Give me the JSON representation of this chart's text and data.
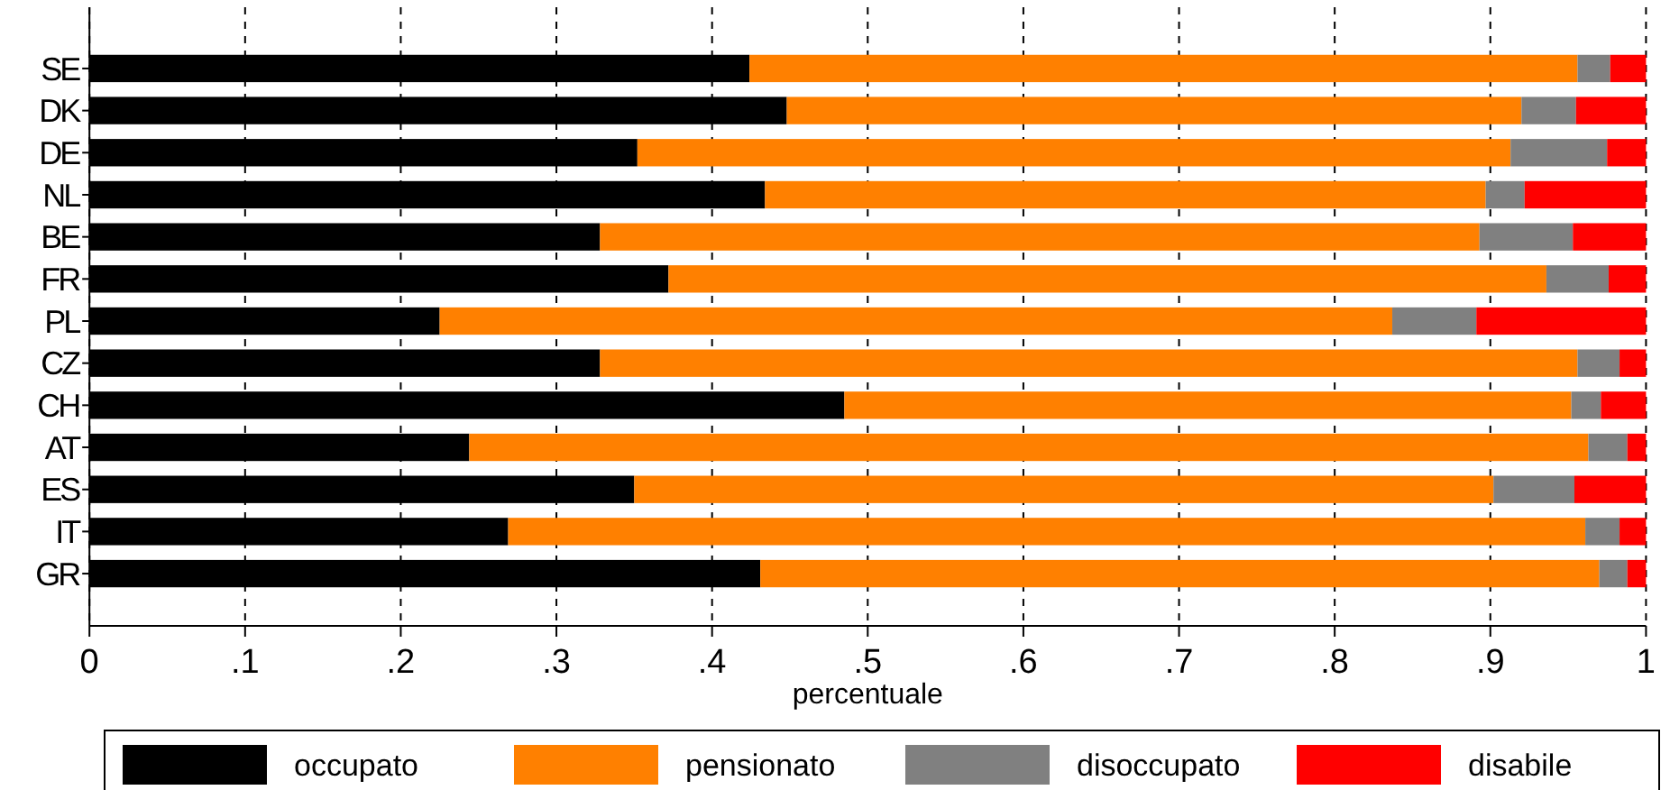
{
  "chart_data": {
    "type": "bar",
    "orientation": "horizontal",
    "stacked": true,
    "xlabel": "percentuale",
    "categories": [
      "SE",
      "DK",
      "DE",
      "NL",
      "BE",
      "FR",
      "PL",
      "CZ",
      "CH",
      "AT",
      "ES",
      "IT",
      "GR"
    ],
    "series": [
      {
        "name": "occupato",
        "color": "#000000",
        "values": [
          0.424,
          0.448,
          0.352,
          0.434,
          0.328,
          0.372,
          0.225,
          0.328,
          0.485,
          0.244,
          0.35,
          0.269,
          0.431
        ]
      },
      {
        "name": "pensionato",
        "color": "#ff8000",
        "values": [
          0.532,
          0.472,
          0.561,
          0.463,
          0.565,
          0.564,
          0.612,
          0.628,
          0.467,
          0.719,
          0.552,
          0.692,
          0.539
        ]
      },
      {
        "name": "disoccupato",
        "color": "#808080",
        "values": [
          0.021,
          0.035,
          0.062,
          0.025,
          0.06,
          0.04,
          0.054,
          0.027,
          0.019,
          0.025,
          0.052,
          0.022,
          0.018
        ]
      },
      {
        "name": "disabile",
        "color": "#ff0000",
        "values": [
          0.023,
          0.045,
          0.025,
          0.078,
          0.047,
          0.024,
          0.109,
          0.017,
          0.029,
          0.012,
          0.046,
          0.017,
          0.012
        ]
      }
    ],
    "xlim": [
      0,
      1
    ],
    "xticks": [
      0,
      {
        "value": 0.1,
        "label": ".1"
      },
      {
        "value": 0.2,
        "label": ".2"
      },
      {
        "value": 0.3,
        "label": ".3"
      },
      {
        "value": 0.4,
        "label": ".4"
      },
      {
        "value": 0.5,
        "label": ".5"
      },
      {
        "value": 0.6,
        "label": ".6"
      },
      {
        "value": 0.7,
        "label": ".7"
      },
      {
        "value": 0.8,
        "label": ".8"
      },
      {
        "value": 0.9,
        "label": ".9"
      },
      1
    ],
    "grid": "x",
    "legend": "bottom"
  }
}
